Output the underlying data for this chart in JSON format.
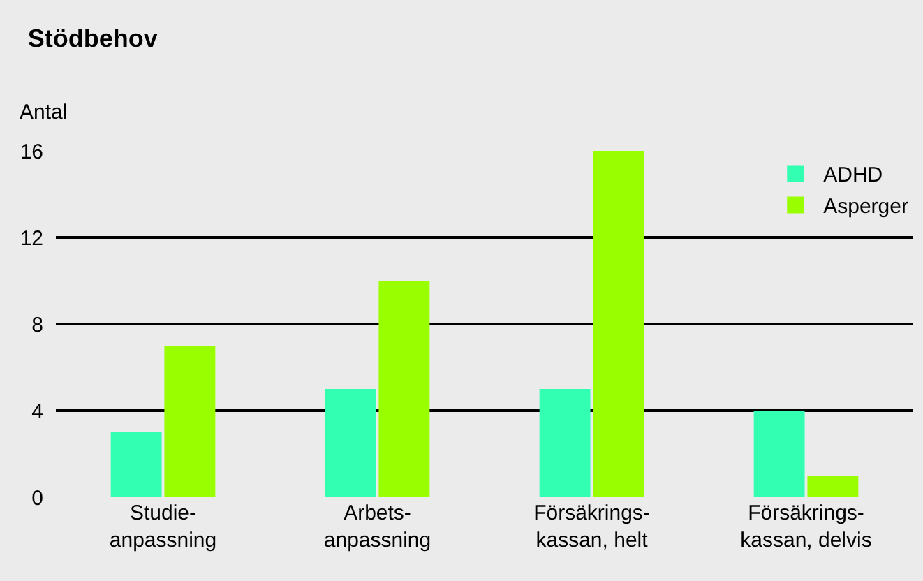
{
  "chart_data": {
    "type": "bar",
    "title": "Stödbehov",
    "ylabel": "Antal",
    "categories": [
      "Studie-\nanpassning",
      "Arbets-\nanpassning",
      "Försäkrings-\nkassan, helt",
      "Försäkrings-\nkassan, delvis"
    ],
    "series": [
      {
        "name": "ADHD",
        "color": "#33ffb3",
        "values": [
          3,
          5,
          5,
          4
        ]
      },
      {
        "name": "Asperger",
        "color": "#99ff00",
        "values": [
          7,
          10,
          16,
          1
        ]
      }
    ],
    "ylim": [
      0,
      16
    ],
    "yticks": [
      0,
      4,
      8,
      12,
      16
    ],
    "grid": "y",
    "legend": "top right"
  }
}
